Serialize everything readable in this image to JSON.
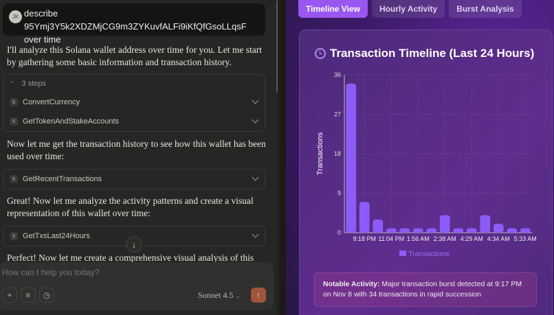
{
  "chat": {
    "user": {
      "initials": "JK",
      "message": "describe 95Ymj3Y5k2XDZMjCG9m3ZYKuvfALFi9iKfQfGsoLLqsF over time"
    },
    "paragraphs": [
      "I'll analyze this Solana wallet address over time for you. Let me start by gathering some basic information and transaction history.",
      "Now let me get the transaction history to see how this wallet has been used over time:",
      "Great! Now let me analyze the activity patterns and create a visual representation of this wallet over time:",
      "Perfect! Now let me create a comprehensive visual analysis of this"
    ],
    "steps_label": "3 steps",
    "tool_badge": "S",
    "tools": [
      "ConvertCurrency",
      "GetTokenAndStakeAccounts",
      "GetRecentTransactions",
      "GetTxsLast24Hours"
    ],
    "composer": {
      "placeholder": "How can I help you today?",
      "model": "Sonnet 4.5"
    }
  },
  "artifact": {
    "tabs": [
      "Timeline View",
      "Hourly Activity",
      "Burst Analysis"
    ],
    "active_tab": 0,
    "title": "Transaction Timeline (Last 24 Hours)",
    "note_label": "Notable Activity:",
    "note_text": " Major transaction burst detected at 9:17 PM on Nov 8 with 34 transactions in rapid succession"
  },
  "chart_data": {
    "type": "bar",
    "categories": [
      "",
      "9:18 PM",
      "",
      "11:04 PM",
      "",
      "1:56 AM",
      "",
      "2:38 AM",
      "",
      "4:29 AM",
      "",
      "4:34 AM",
      "",
      "5:33 AM"
    ],
    "series": [
      {
        "name": "Transactions",
        "values": [
          34,
          7,
          3,
          1,
          1,
          1,
          1,
          4,
          1,
          1,
          4,
          2,
          1,
          1
        ],
        "color": "#8b5cf6"
      }
    ],
    "ylabel": "Transactions",
    "ylim": [
      0,
      36
    ],
    "yticks": [
      0,
      9,
      18,
      27,
      36
    ],
    "grid": true,
    "legend": "bottom"
  }
}
